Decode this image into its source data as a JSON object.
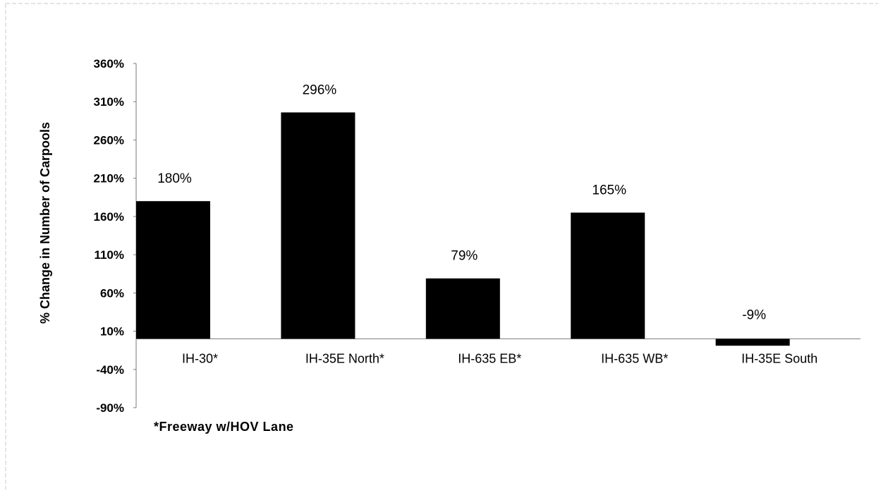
{
  "chart_data": {
    "type": "bar",
    "categories": [
      "IH-30*",
      "IH-35E North*",
      "IH-635 EB*",
      "IH-635 WB*",
      "IH-35E South"
    ],
    "values": [
      180,
      296,
      79,
      165,
      -9
    ],
    "data_labels": [
      "180%",
      "296%",
      "79%",
      "165%",
      "-9%"
    ],
    "ylabel": "% Change in Number of Carpools",
    "ylim": [
      -90,
      360
    ],
    "yticks": [
      -90,
      -40,
      10,
      60,
      110,
      160,
      210,
      260,
      310,
      360
    ],
    "ytick_labels": [
      "-90%",
      "-40%",
      "10%",
      "60%",
      "110%",
      "160%",
      "210%",
      "260%",
      "310%",
      "360%"
    ],
    "footnote": "*Freeway w/HOV Lane",
    "bar_color": "#000000",
    "grid": false,
    "legend": "none"
  }
}
